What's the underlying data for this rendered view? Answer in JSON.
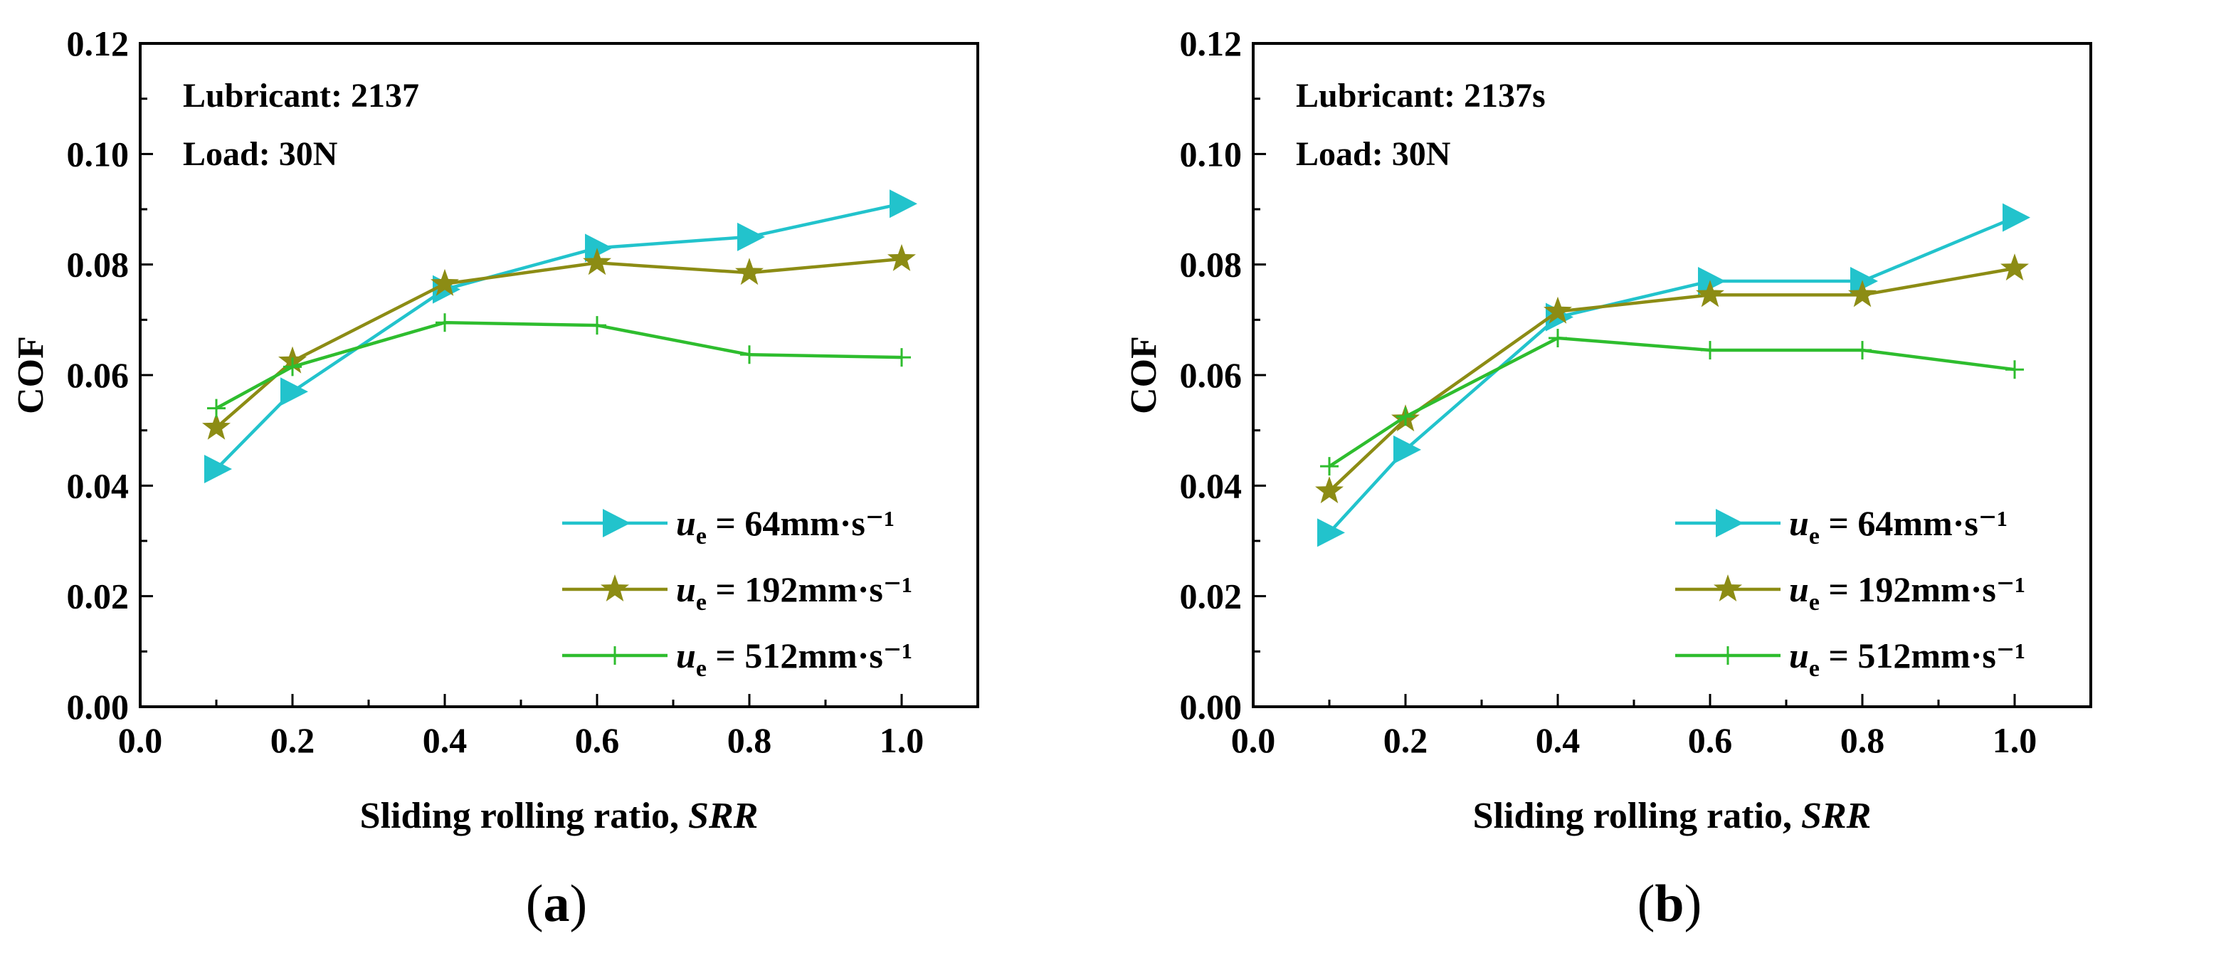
{
  "chart_data": [
    {
      "type": "line",
      "panel_label": "a",
      "xlabel": "Sliding rolling ratio, ",
      "xlabel_italic": "SRR",
      "ylabel": "COF",
      "xlim": [
        0.0,
        1.1
      ],
      "ylim": [
        0.0,
        0.12
      ],
      "xticks": [
        "0.0",
        "0.2",
        "0.4",
        "0.6",
        "0.8",
        "1.0"
      ],
      "yticks": [
        "0.00",
        "0.02",
        "0.04",
        "0.06",
        "0.08",
        "0.10",
        "0.12"
      ],
      "annotations": [
        "Lubricant: 2137",
        "Load: 30N"
      ],
      "legend_position": "bottom-right",
      "series": [
        {
          "name": "64mm·s⁻¹",
          "color": "#22c3cc",
          "marker": "triangle-right",
          "x": [
            0.1,
            0.2,
            0.4,
            0.6,
            0.8,
            1.0
          ],
          "y": [
            0.043,
            0.057,
            0.0755,
            0.083,
            0.085,
            0.091
          ]
        },
        {
          "name": "192mm·s⁻¹",
          "color": "#8c8c14",
          "marker": "star",
          "x": [
            0.1,
            0.2,
            0.4,
            0.6,
            0.8,
            1.0
          ],
          "y": [
            0.0505,
            0.0625,
            0.0765,
            0.0803,
            0.0785,
            0.081
          ]
        },
        {
          "name": "512mm·s⁻¹",
          "color": "#2ebd2e",
          "marker": "plus",
          "x": [
            0.1,
            0.2,
            0.4,
            0.6,
            0.8,
            1.0
          ],
          "y": [
            0.054,
            0.0615,
            0.0695,
            0.069,
            0.0637,
            0.0632
          ]
        }
      ]
    },
    {
      "type": "line",
      "panel_label": "b",
      "xlabel": "Sliding rolling ratio, ",
      "xlabel_italic": "SRR",
      "ylabel": "COF",
      "xlim": [
        0.0,
        1.1
      ],
      "ylim": [
        0.0,
        0.12
      ],
      "xticks": [
        "0.0",
        "0.2",
        "0.4",
        "0.6",
        "0.8",
        "1.0"
      ],
      "yticks": [
        "0.00",
        "0.02",
        "0.04",
        "0.06",
        "0.08",
        "0.10",
        "0.12"
      ],
      "annotations": [
        "Lubricant: 2137s",
        "Load: 30N"
      ],
      "legend_position": "bottom-right",
      "series": [
        {
          "name": "64mm·s⁻¹",
          "color": "#22c3cc",
          "marker": "triangle-right",
          "x": [
            0.1,
            0.2,
            0.4,
            0.6,
            0.8,
            1.0
          ],
          "y": [
            0.0315,
            0.0465,
            0.0705,
            0.077,
            0.077,
            0.0885
          ]
        },
        {
          "name": "192mm·s⁻¹",
          "color": "#8c8c14",
          "marker": "star",
          "x": [
            0.1,
            0.2,
            0.4,
            0.6,
            0.8,
            1.0
          ],
          "y": [
            0.039,
            0.052,
            0.0715,
            0.0745,
            0.0745,
            0.0793
          ]
        },
        {
          "name": "512mm·s⁻¹",
          "color": "#2ebd2e",
          "marker": "plus",
          "x": [
            0.1,
            0.2,
            0.4,
            0.6,
            0.8,
            1.0
          ],
          "y": [
            0.0435,
            0.0525,
            0.0667,
            0.0645,
            0.0645,
            0.061
          ]
        }
      ]
    }
  ]
}
